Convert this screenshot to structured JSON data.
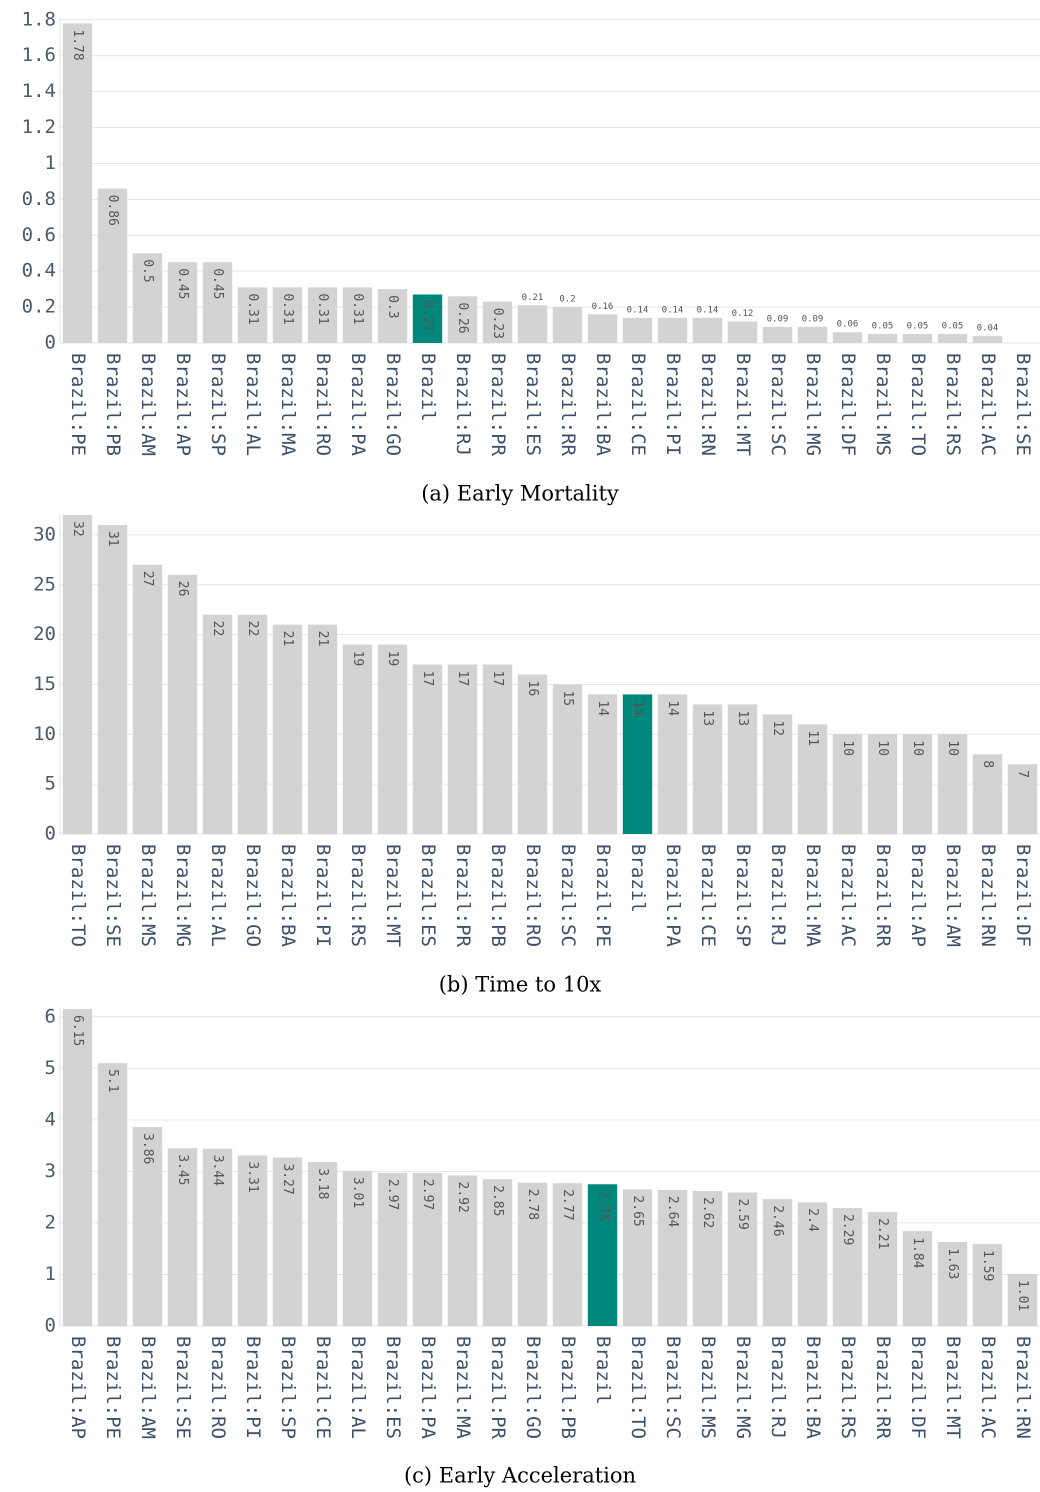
{
  "chart_data": [
    {
      "type": "bar",
      "caption": "(a) Early Mortality",
      "categories": [
        "Brazil:PE",
        "Brazil:PB",
        "Brazil:AM",
        "Brazil:AP",
        "Brazil:SP",
        "Brazil:AL",
        "Brazil:MA",
        "Brazil:RO",
        "Brazil:PA",
        "Brazil:GO",
        "Brazil",
        "Brazil:RJ",
        "Brazil:PR",
        "Brazil:ES",
        "Brazil:RR",
        "Brazil:BA",
        "Brazil:CE",
        "Brazil:PI",
        "Brazil:RN",
        "Brazil:MT",
        "Brazil:SC",
        "Brazil:MG",
        "Brazil:DF",
        "Brazil:MS",
        "Brazil:TO",
        "Brazil:RS",
        "Brazil:AC",
        "Brazil:SE"
      ],
      "values": [
        1.78,
        0.86,
        0.5,
        0.45,
        0.45,
        0.31,
        0.31,
        0.31,
        0.31,
        0.3,
        0.27,
        0.26,
        0.23,
        0.21,
        0.2,
        0.16,
        0.14,
        0.14,
        0.14,
        0.12,
        0.09,
        0.09,
        0.06,
        0.05,
        0.05,
        0.05,
        0.04,
        null
      ],
      "colors": [
        "#d3d3d3",
        "#d3d3d3",
        "#d3d3d3",
        "#d3d3d3",
        "#d3d3d3",
        "#d3d3d3",
        "#d3d3d3",
        "#d3d3d3",
        "#d3d3d3",
        "#d3d3d3",
        "#00877c",
        "#d3d3d3",
        "#d3d3d3",
        "#d3d3d3",
        "#d3d3d3",
        "#d3d3d3",
        "#d3d3d3",
        "#d3d3d3",
        "#d3d3d3",
        "#d3d3d3",
        "#d3d3d3",
        "#d3d3d3",
        "#d3d3d3",
        "#d3d3d3",
        "#d3d3d3",
        "#d3d3d3",
        "#d3d3d3",
        "#d3d3d3"
      ],
      "ylim": [
        0,
        1.81
      ],
      "yticks": [
        0,
        0.2,
        0.4,
        0.6,
        0.8,
        1,
        1.2,
        1.4,
        1.6,
        1.8
      ],
      "grid": true
    },
    {
      "type": "bar",
      "caption": "(b) Time to 10x",
      "categories": [
        "Brazil:TO",
        "Brazil:SE",
        "Brazil:MS",
        "Brazil:MG",
        "Brazil:AL",
        "Brazil:GO",
        "Brazil:BA",
        "Brazil:PI",
        "Brazil:RS",
        "Brazil:MT",
        "Brazil:ES",
        "Brazil:PR",
        "Brazil:PB",
        "Brazil:RO",
        "Brazil:SC",
        "Brazil:PE",
        "Brazil",
        "Brazil:PA",
        "Brazil:CE",
        "Brazil:SP",
        "Brazil:RJ",
        "Brazil:MA",
        "Brazil:AC",
        "Brazil:RR",
        "Brazil:AP",
        "Brazil:AM",
        "Brazil:RN",
        "Brazil:DF"
      ],
      "values": [
        32,
        31,
        27,
        26,
        22,
        22,
        21,
        21,
        19,
        19,
        17,
        17,
        17,
        16,
        15,
        14,
        14,
        14,
        13,
        13,
        12,
        11,
        10,
        10,
        10,
        10,
        8,
        7
      ],
      "colors": [
        "#d3d3d3",
        "#d3d3d3",
        "#d3d3d3",
        "#d3d3d3",
        "#d3d3d3",
        "#d3d3d3",
        "#d3d3d3",
        "#d3d3d3",
        "#d3d3d3",
        "#d3d3d3",
        "#d3d3d3",
        "#d3d3d3",
        "#d3d3d3",
        "#d3d3d3",
        "#d3d3d3",
        "#d3d3d3",
        "#00877c",
        "#d3d3d3",
        "#d3d3d3",
        "#d3d3d3",
        "#d3d3d3",
        "#d3d3d3",
        "#d3d3d3",
        "#d3d3d3",
        "#d3d3d3",
        "#d3d3d3",
        "#d3d3d3",
        "#d3d3d3"
      ],
      "ylim": [
        0,
        32.2
      ],
      "yticks": [
        0,
        5,
        10,
        15,
        20,
        25,
        30
      ],
      "grid": true
    },
    {
      "type": "bar",
      "caption": "(c) Early Acceleration",
      "categories": [
        "Brazil:AP",
        "Brazil:PE",
        "Brazil:AM",
        "Brazil:SE",
        "Brazil:RO",
        "Brazil:PI",
        "Brazil:SP",
        "Brazil:CE",
        "Brazil:AL",
        "Brazil:ES",
        "Brazil:PA",
        "Brazil:MA",
        "Brazil:PR",
        "Brazil:GO",
        "Brazil:PB",
        "Brazil",
        "Brazil:TO",
        "Brazil:SC",
        "Brazil:MS",
        "Brazil:MG",
        "Brazil:RJ",
        "Brazil:BA",
        "Brazil:RS",
        "Brazil:RR",
        "Brazil:DF",
        "Brazil:MT",
        "Brazil:AC",
        "Brazil:RN"
      ],
      "values": [
        6.15,
        5.1,
        3.86,
        3.45,
        3.44,
        3.31,
        3.27,
        3.18,
        3.01,
        2.97,
        2.97,
        2.92,
        2.85,
        2.78,
        2.77,
        2.75,
        2.65,
        2.64,
        2.62,
        2.59,
        2.46,
        2.4,
        2.29,
        2.21,
        1.84,
        1.63,
        1.59,
        1.01
      ],
      "colors": [
        "#d3d3d3",
        "#d3d3d3",
        "#d3d3d3",
        "#d3d3d3",
        "#d3d3d3",
        "#d3d3d3",
        "#d3d3d3",
        "#d3d3d3",
        "#d3d3d3",
        "#d3d3d3",
        "#d3d3d3",
        "#d3d3d3",
        "#d3d3d3",
        "#d3d3d3",
        "#d3d3d3",
        "#00877c",
        "#d3d3d3",
        "#d3d3d3",
        "#d3d3d3",
        "#d3d3d3",
        "#d3d3d3",
        "#d3d3d3",
        "#d3d3d3",
        "#d3d3d3",
        "#d3d3d3",
        "#d3d3d3",
        "#d3d3d3",
        "#d3d3d3"
      ],
      "ylim": [
        0,
        6.17
      ],
      "yticks": [
        0,
        1,
        2,
        3,
        4,
        5,
        6
      ],
      "grid": true
    }
  ]
}
